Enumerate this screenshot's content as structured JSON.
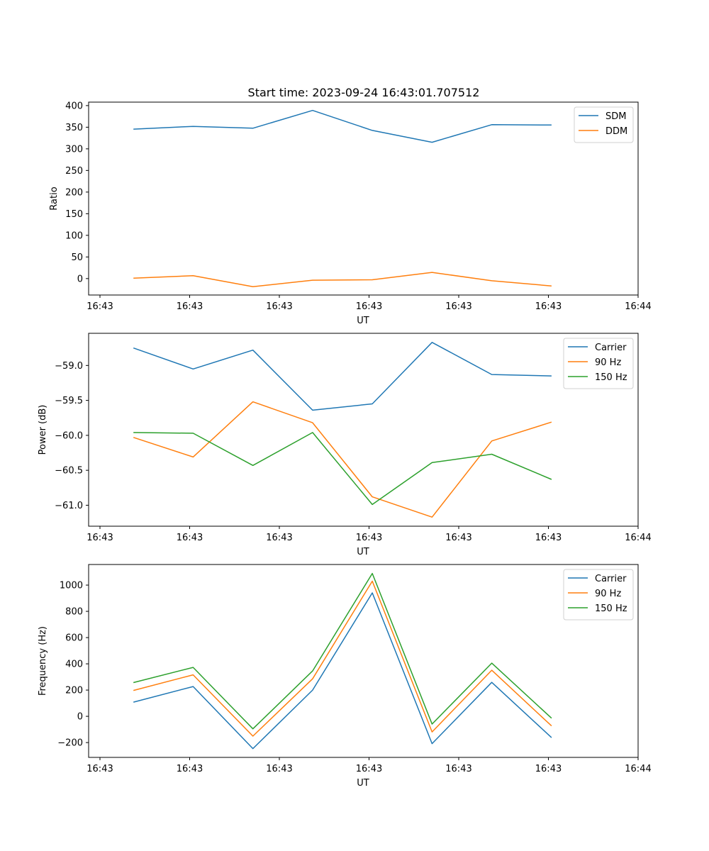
{
  "figure": {
    "title": "Start time: 2023-09-24 16:43:01.707512"
  },
  "chart_data": [
    {
      "type": "line",
      "title": "Start time: 2023-09-24 16:43:01.707512",
      "xlabel": "UT",
      "ylabel": "Ratio",
      "x_tick_labels": [
        "16:43",
        "16:43",
        "16:43",
        "16:43",
        "16:43",
        "16:43",
        "16:44"
      ],
      "x_index_range": [
        -0.75,
        8.45
      ],
      "x": [
        0,
        1,
        2,
        3,
        4,
        5,
        6,
        7
      ],
      "ylim": [
        -38,
        408
      ],
      "y_ticks": [
        0,
        50,
        100,
        150,
        200,
        250,
        300,
        350,
        400
      ],
      "y_tick_labels": [
        "0",
        "50",
        "100",
        "150",
        "200",
        "250",
        "300",
        "350",
        "400"
      ],
      "grid": false,
      "legend": "top-right",
      "series": [
        {
          "name": "SDM",
          "color": "#1f77b4",
          "values": [
            345.5,
            352.0,
            347.6,
            388.8,
            342.6,
            315.2,
            355.9,
            355.0
          ]
        },
        {
          "name": "DDM",
          "color": "#ff7f0e",
          "values": [
            1.1,
            6.6,
            -18.7,
            -3.8,
            -2.8,
            14.3,
            -5.0,
            -17.0
          ]
        }
      ]
    },
    {
      "type": "line",
      "title": "",
      "xlabel": "UT",
      "ylabel": "Power (dB)",
      "x_tick_labels": [
        "16:43",
        "16:43",
        "16:43",
        "16:43",
        "16:43",
        "16:43",
        "16:44"
      ],
      "x_index_range": [
        -0.75,
        8.45
      ],
      "x": [
        0,
        1,
        2,
        3,
        4,
        5,
        6,
        7
      ],
      "ylim": [
        -61.3,
        -58.54
      ],
      "y_ticks": [
        -61.0,
        -60.5,
        -60.0,
        -59.5,
        -59.0
      ],
      "y_tick_labels": [
        "−61.0",
        "−60.5",
        "−60.0",
        "−59.5",
        "−59.0"
      ],
      "grid": false,
      "legend": "top-right",
      "series": [
        {
          "name": "Carrier",
          "color": "#1f77b4",
          "values": [
            -58.75,
            -59.05,
            -58.78,
            -59.64,
            -59.55,
            -58.67,
            -59.13,
            -59.15
          ]
        },
        {
          "name": "90 Hz",
          "color": "#ff7f0e",
          "values": [
            -60.03,
            -60.31,
            -59.52,
            -59.82,
            -60.88,
            -61.17,
            -60.08,
            -59.81
          ]
        },
        {
          "name": "150 Hz",
          "color": "#2ca02c",
          "values": [
            -59.96,
            -59.97,
            -60.43,
            -59.96,
            -60.99,
            -60.39,
            -60.27,
            -60.63
          ]
        }
      ]
    },
    {
      "type": "line",
      "title": "",
      "xlabel": "UT",
      "ylabel": "Frequency (Hz)",
      "x_tick_labels": [
        "16:43",
        "16:43",
        "16:43",
        "16:43",
        "16:43",
        "16:43",
        "16:44"
      ],
      "x_index_range": [
        -0.75,
        8.45
      ],
      "x": [
        0,
        1,
        2,
        3,
        4,
        5,
        6,
        7
      ],
      "ylim": [
        -313,
        1157
      ],
      "y_ticks": [
        -200,
        0,
        200,
        400,
        600,
        800,
        1000
      ],
      "y_tick_labels": [
        "−200",
        "0",
        "200",
        "400",
        "600",
        "800",
        "1000"
      ],
      "grid": false,
      "legend": "top-right",
      "series": [
        {
          "name": "Carrier",
          "color": "#1f77b4",
          "values": [
            108,
            227,
            -246,
            200,
            941,
            -208,
            259,
            -162
          ]
        },
        {
          "name": "90 Hz",
          "color": "#ff7f0e",
          "values": [
            197,
            316,
            -151,
            286,
            1030,
            -119,
            351,
            -73
          ]
        },
        {
          "name": "150 Hz",
          "color": "#2ca02c",
          "values": [
            257,
            373,
            -95,
            346,
            1089,
            -59,
            405,
            -14
          ]
        }
      ]
    }
  ]
}
